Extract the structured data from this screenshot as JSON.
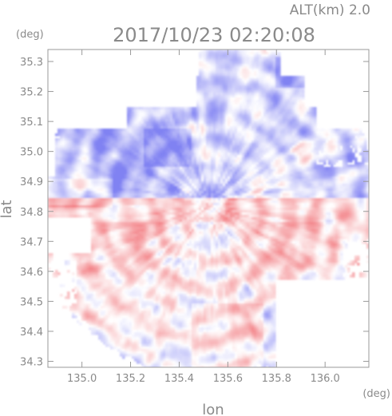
{
  "chart_data": {
    "type": "heatmap",
    "title": "2017/10/23 02:20:08",
    "altitude_label": "ALT(km) 2.0",
    "xlabel": "lon",
    "ylabel": "lat",
    "x_unit": "(deg)",
    "y_unit": "(deg)",
    "xlim": [
      134.86,
      136.18
    ],
    "ylim": [
      34.28,
      35.34
    ],
    "x_ticks": [
      135.0,
      135.2,
      135.4,
      135.6,
      135.8,
      136.0
    ],
    "x_tick_labels": [
      "135.0",
      "135.2",
      "135.4",
      "135.6",
      "135.8",
      "136.0"
    ],
    "y_ticks": [
      34.3,
      34.4,
      34.5,
      34.6,
      34.7,
      34.8,
      34.9,
      35.0,
      35.1,
      35.2,
      35.3
    ],
    "y_tick_labels": [
      "34.3",
      "34.4",
      "34.5",
      "34.6",
      "34.7",
      "34.8",
      "34.9",
      "35.0",
      "35.1",
      "35.2",
      "35.3"
    ],
    "radar_center": {
      "lon": 135.52,
      "lat": 34.82
    },
    "colormap": {
      "negative": "#6a6cf0",
      "neutral": "#ffffff",
      "positive": "#f0686e"
    },
    "value_range": [
      -1,
      1
    ],
    "grid": false,
    "legend": "none"
  }
}
